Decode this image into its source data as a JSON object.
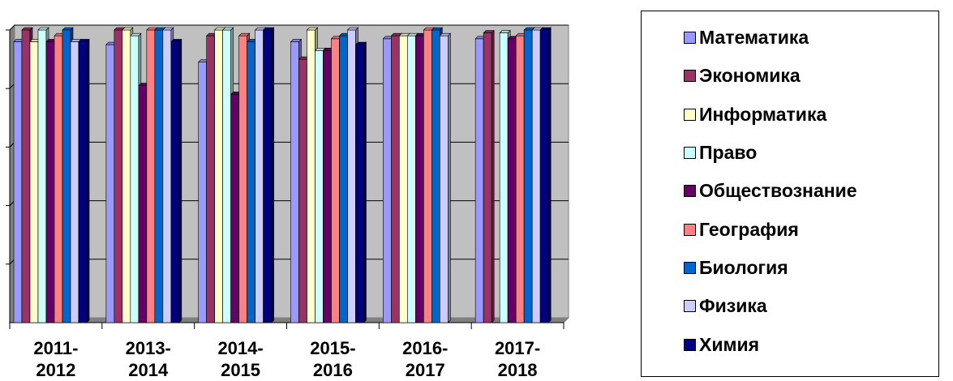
{
  "chart_data": {
    "type": "bar",
    "style": "3d-clustered",
    "categories": [
      "2011-\n2012",
      "2013-\n2014",
      "2014-\n2015",
      "2015-\n2016",
      "2016-\n2017",
      "2017-\n2018"
    ],
    "ylim": [
      0,
      100
    ],
    "grid": true,
    "legend_position": "right",
    "series": [
      {
        "name": "Математика",
        "color": "#9999ff",
        "values": [
          96,
          95,
          89,
          96,
          97,
          97
        ]
      },
      {
        "name": "Экономика",
        "color": "#993366",
        "values": [
          100,
          100,
          98,
          90,
          98,
          99
        ]
      },
      {
        "name": "Информатика",
        "color": "#ffffcc",
        "values": [
          96,
          100,
          100,
          100,
          98,
          null
        ]
      },
      {
        "name": "Право",
        "color": "#ccffff",
        "values": [
          100,
          98,
          100,
          93,
          98,
          99
        ]
      },
      {
        "name": "Обществознание",
        "color": "#660066",
        "values": [
          96,
          81,
          78,
          93,
          98,
          97
        ]
      },
      {
        "name": "География",
        "color": "#ff8080",
        "values": [
          98,
          100,
          98,
          97,
          100,
          98
        ]
      },
      {
        "name": "Биология",
        "color": "#0066cc",
        "values": [
          100,
          100,
          96,
          98,
          100,
          100
        ]
      },
      {
        "name": "Физика",
        "color": "#ccccff",
        "values": [
          96,
          100,
          100,
          100,
          98,
          100
        ]
      },
      {
        "name": "Химия",
        "color": "#000080",
        "values": [
          96,
          96,
          100,
          95,
          null,
          100
        ]
      }
    ]
  }
}
